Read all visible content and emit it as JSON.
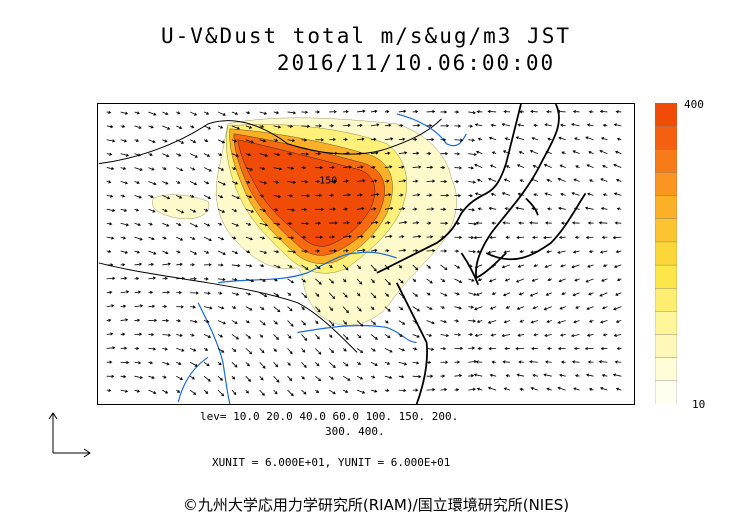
{
  "header": {
    "title_line1": "U-V&Dust total m/s&ug/m3 JST",
    "title_line2": "2016/11/10.06:00:00"
  },
  "legend": {
    "max_label": "400",
    "min_label": "10",
    "colors": [
      "#fffff0",
      "#fffcd8",
      "#fff8b8",
      "#fff59a",
      "#ffee70",
      "#fde64a",
      "#fdd637",
      "#fcc430",
      "#fbb028",
      "#f99520",
      "#f87a18",
      "#f46010",
      "#f04c08"
    ]
  },
  "contour_info": {
    "levels_line1": "lev= 10.0 20.0 40.0 60.0 100. 150. 200.",
    "levels_line2": "300. 400."
  },
  "units_text": "XUNIT = 6.000E+01, YUNIT = 6.000E+01",
  "map": {
    "contour_label": "150",
    "dust_colors": {
      "light": "#fffacc",
      "yellow": "#fff07a",
      "orange_mid": "#fbb028",
      "orange": "#f86a12",
      "red": "#f04c08"
    },
    "coast_color": "#000000",
    "river_color": "#1a6bd6"
  },
  "credit": "©九州大学応用力学研究所(RIAM)/国立環境研究所(NIES)"
}
